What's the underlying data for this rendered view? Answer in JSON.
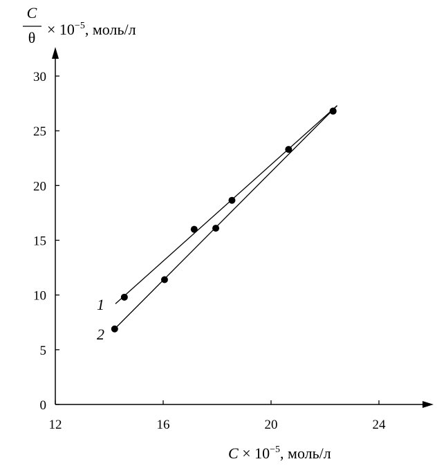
{
  "chart_data": {
    "type": "scatter",
    "ylabel": {
      "numerator": "C",
      "denominator": "θ",
      "rest": "× 10",
      "exp": "−5",
      "unit": ", моль/л"
    },
    "xlabel": {
      "var": "C",
      "rest": " × 10",
      "exp": "−5",
      "unit": ", моль/л"
    },
    "xlim": [
      12,
      26
    ],
    "ylim": [
      0,
      32
    ],
    "xticks": [
      12,
      16,
      20,
      24
    ],
    "yticks": [
      0,
      5,
      10,
      15,
      20,
      25,
      30
    ],
    "grid": false,
    "series": [
      {
        "name": "1",
        "points": [
          [
            14.56,
            9.8
          ],
          [
            17.15,
            16.0
          ],
          [
            18.55,
            18.65
          ],
          [
            20.65,
            23.3
          ],
          [
            22.3,
            26.8
          ]
        ],
        "line": [
          [
            14.23,
            9.2
          ],
          [
            22.45,
            27.3
          ]
        ]
      },
      {
        "name": "2",
        "points": [
          [
            14.2,
            6.9
          ],
          [
            16.05,
            11.4
          ],
          [
            17.95,
            16.1
          ],
          [
            22.3,
            26.8
          ]
        ],
        "line": [
          [
            14.2,
            6.9
          ],
          [
            22.45,
            27.3
          ]
        ]
      }
    ],
    "colors": {
      "ink": "#000000"
    }
  }
}
